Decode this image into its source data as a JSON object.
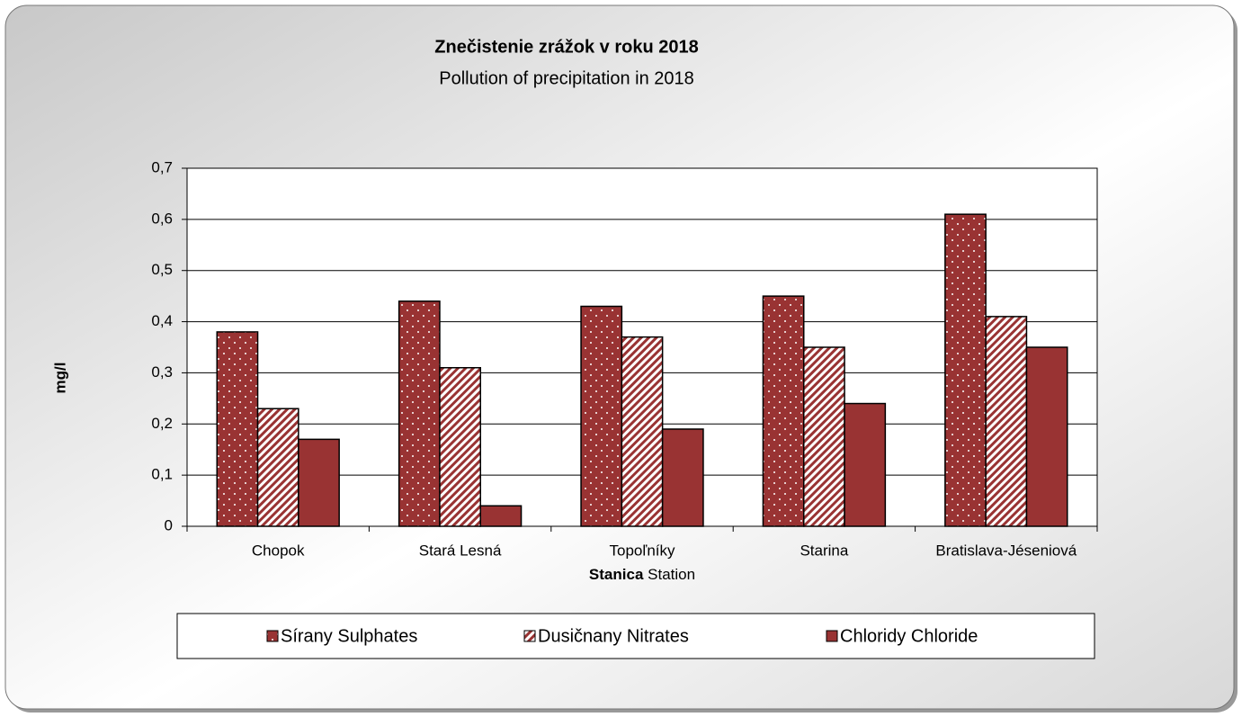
{
  "chart_data": {
    "type": "bar",
    "title": "Znečistenie zrážok v roku 2018",
    "subtitle": "Pollution of precipitation in 2018",
    "xlabel_bold": "Stanica",
    "xlabel": "Station",
    "ylabel": "mg/l",
    "categories": [
      "Chopok",
      "Stará Lesná",
      "Topoľníky",
      "Starina",
      "Bratislava-Jéseniová"
    ],
    "series": [
      {
        "name": "Sírany Sulphates",
        "color": "#993333",
        "pattern": "dots",
        "values": [
          0.38,
          0.44,
          0.43,
          0.45,
          0.61
        ]
      },
      {
        "name": "Dusičnany Nitrates",
        "color": "#993333",
        "pattern": "stripes",
        "values": [
          0.23,
          0.31,
          0.37,
          0.35,
          0.41
        ]
      },
      {
        "name": "Chloridy Chloride",
        "color": "#993333",
        "pattern": "solid",
        "values": [
          0.17,
          0.04,
          0.19,
          0.24,
          0.35
        ]
      }
    ],
    "ylim": [
      0,
      0.7
    ],
    "yticks": [
      0,
      {
        "value": 0.1,
        "label": "0,1"
      },
      {
        "value": 0.2,
        "label": "0,2"
      },
      {
        "value": 0.3,
        "label": "0,3"
      },
      {
        "value": 0.4,
        "label": "0,4"
      },
      {
        "value": 0.5,
        "label": "0,5"
      },
      {
        "value": 0.6,
        "label": "0,6"
      },
      {
        "value": 0.7,
        "label": "0,7"
      }
    ],
    "grid": true,
    "legend": "bottom"
  }
}
